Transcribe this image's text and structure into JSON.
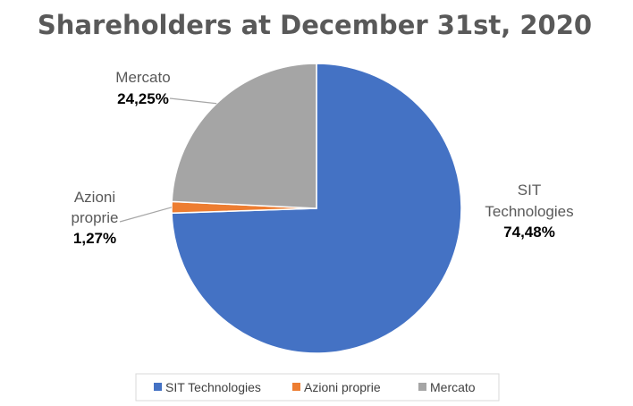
{
  "chart_data": {
    "type": "pie",
    "title": "Shareholders at December 31st, 2020",
    "slices": [
      {
        "name": "SIT Technologies",
        "label_lines": [
          "SIT",
          "Technologies"
        ],
        "value": 74.48,
        "value_label": "74,48%",
        "color": "#4472C4"
      },
      {
        "name": "Azioni proprie",
        "label_lines": [
          "Azioni",
          "proprie"
        ],
        "value": 1.27,
        "value_label": "1,27%",
        "color": "#ED7D31"
      },
      {
        "name": "Mercato",
        "label_lines": [
          "Mercato"
        ],
        "value": 24.25,
        "value_label": "24,25%",
        "color": "#A5A5A5"
      }
    ],
    "legend": {
      "placement": "bottom"
    }
  }
}
